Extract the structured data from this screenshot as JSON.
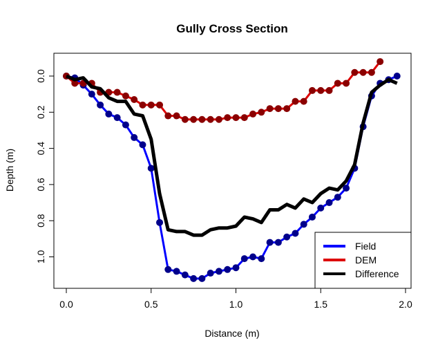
{
  "chart_data": {
    "type": "line",
    "title": "Gully Cross Section",
    "xlabel": "Distance (m)",
    "ylabel": "Depth (m)",
    "xlim": [
      0.0,
      2.0
    ],
    "ylim": [
      1.15,
      -0.12
    ],
    "y_reversed": true,
    "x_ticks": [
      "0.0",
      "0.5",
      "1.0",
      "1.5",
      "2.0"
    ],
    "x_tick_values": [
      0.0,
      0.5,
      1.0,
      1.5,
      2.0
    ],
    "y_ticks": [
      "0.0",
      "0.2",
      "0.4",
      "0.6",
      "0.8",
      "1.0"
    ],
    "y_tick_values": [
      0.0,
      0.2,
      0.4,
      0.6,
      0.8,
      1.0
    ],
    "grid": false,
    "legend_position": "bottom-right",
    "series": [
      {
        "name": "Field",
        "color": "#0000ff",
        "point_color": "#00008b",
        "markers": true,
        "x": [
          0.0,
          0.05,
          0.1,
          0.15,
          0.2,
          0.25,
          0.3,
          0.35,
          0.4,
          0.45,
          0.5,
          0.55,
          0.6,
          0.65,
          0.7,
          0.75,
          0.8,
          0.85,
          0.9,
          0.95,
          1.0,
          1.05,
          1.1,
          1.15,
          1.2,
          1.25,
          1.3,
          1.35,
          1.4,
          1.45,
          1.5,
          1.55,
          1.6,
          1.65,
          1.7,
          1.75,
          1.8,
          1.85,
          1.9,
          1.95
        ],
        "y": [
          0.0,
          0.01,
          0.05,
          0.1,
          0.16,
          0.21,
          0.23,
          0.27,
          0.34,
          0.38,
          0.51,
          0.81,
          1.07,
          1.08,
          1.1,
          1.12,
          1.12,
          1.09,
          1.08,
          1.07,
          1.06,
          1.01,
          1.0,
          1.01,
          0.92,
          0.92,
          0.89,
          0.87,
          0.82,
          0.78,
          0.73,
          0.7,
          0.67,
          0.62,
          0.51,
          0.28,
          0.11,
          0.04,
          0.02,
          0.0
        ]
      },
      {
        "name": "DEM",
        "color": "#dd0000",
        "point_color": "#8b0000",
        "markers": true,
        "x": [
          0.0,
          0.05,
          0.1,
          0.15,
          0.2,
          0.25,
          0.3,
          0.35,
          0.4,
          0.45,
          0.5,
          0.55,
          0.6,
          0.65,
          0.7,
          0.75,
          0.8,
          0.85,
          0.9,
          0.95,
          1.0,
          1.05,
          1.1,
          1.15,
          1.2,
          1.25,
          1.3,
          1.35,
          1.4,
          1.45,
          1.5,
          1.55,
          1.6,
          1.65,
          1.7,
          1.75,
          1.8,
          1.85
        ],
        "y": [
          0.0,
          0.04,
          0.04,
          0.04,
          0.09,
          0.09,
          0.09,
          0.11,
          0.13,
          0.16,
          0.16,
          0.16,
          0.22,
          0.22,
          0.24,
          0.24,
          0.24,
          0.24,
          0.24,
          0.23,
          0.23,
          0.23,
          0.21,
          0.2,
          0.18,
          0.18,
          0.18,
          0.14,
          0.14,
          0.08,
          0.08,
          0.08,
          0.04,
          0.04,
          -0.02,
          -0.02,
          -0.02,
          -0.08
        ]
      },
      {
        "name": "Difference",
        "color": "#000000",
        "markers": false,
        "x": [
          0.0,
          0.05,
          0.1,
          0.15,
          0.2,
          0.25,
          0.3,
          0.35,
          0.4,
          0.45,
          0.5,
          0.55,
          0.6,
          0.65,
          0.7,
          0.75,
          0.8,
          0.85,
          0.9,
          0.95,
          1.0,
          1.05,
          1.1,
          1.15,
          1.2,
          1.25,
          1.3,
          1.35,
          1.4,
          1.45,
          1.5,
          1.55,
          1.6,
          1.65,
          1.7,
          1.75,
          1.8,
          1.85,
          1.9,
          1.95
        ],
        "y": [
          0.0,
          0.02,
          0.01,
          0.06,
          0.07,
          0.12,
          0.14,
          0.14,
          0.21,
          0.22,
          0.35,
          0.65,
          0.85,
          0.86,
          0.86,
          0.88,
          0.88,
          0.85,
          0.84,
          0.84,
          0.83,
          0.78,
          0.79,
          0.81,
          0.74,
          0.74,
          0.71,
          0.73,
          0.68,
          0.7,
          0.65,
          0.62,
          0.63,
          0.58,
          0.49,
          0.26,
          0.09,
          0.05,
          0.02,
          0.04
        ]
      }
    ]
  }
}
